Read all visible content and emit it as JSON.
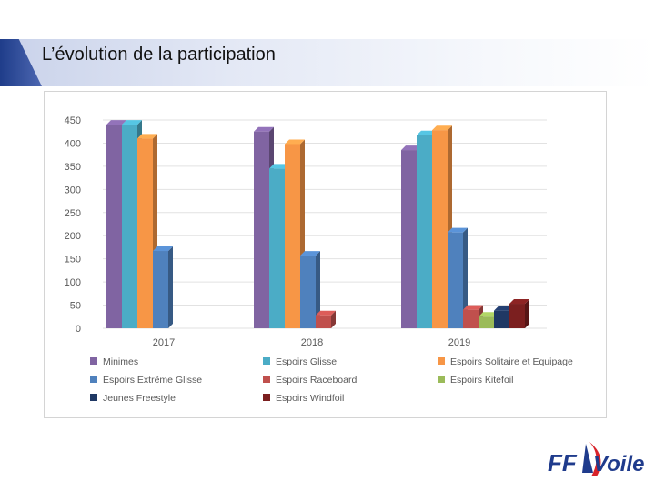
{
  "page": {
    "title": "L’évolution de la participation"
  },
  "logo": {
    "text_ff": "FF",
    "text_voile": "Voile",
    "color_dark": "#1f3b8c",
    "color_red": "#d8232a"
  },
  "chart_data": {
    "type": "bar",
    "style": "3d-clustered-column",
    "categories": [
      "2017",
      "2018",
      "2019"
    ],
    "ylim": [
      0,
      450
    ],
    "yticks": [
      0,
      50,
      100,
      150,
      200,
      250,
      300,
      350,
      400,
      450
    ],
    "grid": true,
    "legend_position": "bottom",
    "series": [
      {
        "name": "Minimes",
        "color": "#8064a2",
        "values": [
          440,
          425,
          385
        ]
      },
      {
        "name": "Espoirs Glisse",
        "color": "#4bacc6",
        "values": [
          440,
          345,
          417
        ]
      },
      {
        "name": "Espoirs Solitaire et Equipage",
        "color": "#f79646",
        "values": [
          410,
          398,
          428
        ]
      },
      {
        "name": "Espoirs Extrême Glisse",
        "color": "#4f81bd",
        "values": [
          167,
          157,
          207
        ]
      },
      {
        "name": "Espoirs Raceboard",
        "color": "#c0504d",
        "values": [
          0,
          28,
          40
        ]
      },
      {
        "name": "Espoirs Kitefoil",
        "color": "#9bbb59",
        "values": [
          0,
          0,
          25
        ]
      },
      {
        "name": "Jeunes Freestyle",
        "color": "#1f3864",
        "values": [
          0,
          0,
          38
        ]
      },
      {
        "name": "Espoirs Windfoil",
        "color": "#7b1f1f",
        "values": [
          0,
          0,
          53
        ]
      }
    ]
  }
}
